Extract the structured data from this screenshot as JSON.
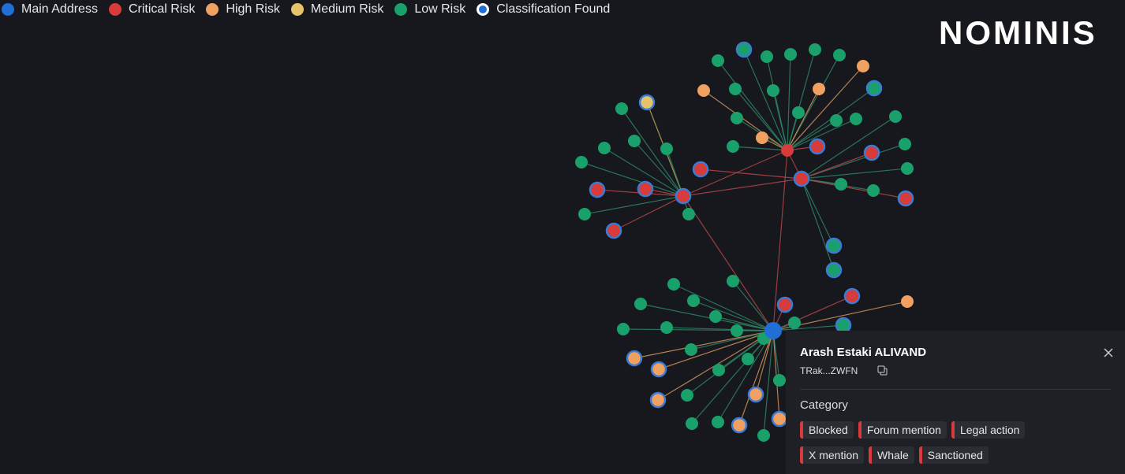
{
  "legend": {
    "items": [
      {
        "label": "Main Address",
        "color": "#1f6fd6"
      },
      {
        "label": "Critical Risk",
        "color": "#d93a3a"
      },
      {
        "label": "High Risk",
        "color": "#f0a060"
      },
      {
        "label": "Medium Risk",
        "color": "#e6c46a"
      },
      {
        "label": "Low Risk",
        "color": "#1aa06b"
      },
      {
        "label": "Classification Found",
        "color": "#1f6fd6"
      }
    ]
  },
  "logo": "NOMINIS",
  "panel": {
    "title": "Arash Estaki ALIVAND",
    "address": "TRak...ZWFN",
    "category_label": "Category",
    "tags": [
      "Blocked",
      "Forum mention",
      "Legal action",
      "X mention",
      "Whale",
      "Sanctioned"
    ]
  }
}
